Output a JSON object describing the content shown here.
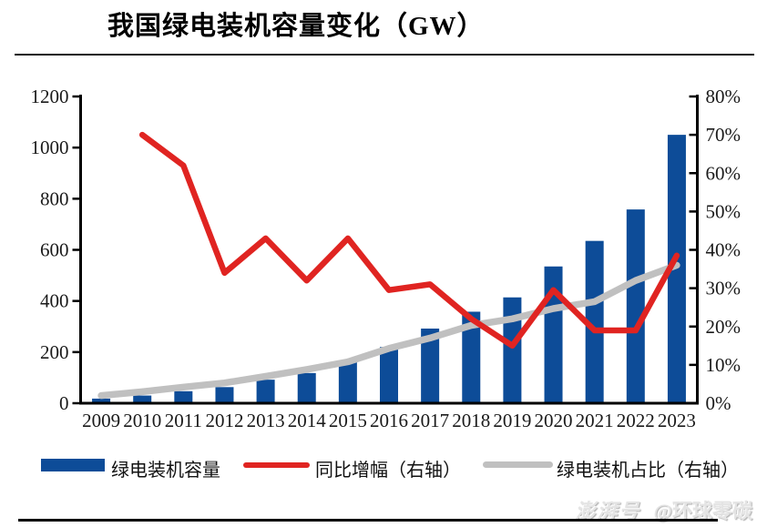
{
  "header": {
    "title": "我国绿电装机容量变化（GW）"
  },
  "chart_data": {
    "type": "combo",
    "title": "我国绿电装机容量变化（GW）",
    "categories": [
      "2009",
      "2010",
      "2011",
      "2012",
      "2013",
      "2014",
      "2015",
      "2016",
      "2017",
      "2018",
      "2019",
      "2020",
      "2021",
      "2022",
      "2023"
    ],
    "series": [
      {
        "name": "绿电装机容量",
        "type": "bar",
        "axis": "left",
        "unit": "GW",
        "color": "#0d4c98",
        "values": [
          18,
          30,
          47,
          63,
          92,
          118,
          163,
          220,
          292,
          358,
          414,
          535,
          635,
          758,
          1050
        ]
      },
      {
        "name": "同比增幅（右轴）",
        "type": "line",
        "axis": "right",
        "unit": "%",
        "color": "#e02421",
        "values": [
          null,
          70,
          62,
          34,
          43,
          32,
          43,
          29.5,
          31,
          22,
          15,
          29.5,
          19,
          19,
          38.5
        ]
      },
      {
        "name": "绿电装机占比（右轴）",
        "type": "line",
        "axis": "right",
        "unit": "%",
        "color": "#c0c0c0",
        "values": [
          2,
          3,
          4.2,
          5.3,
          7,
          8.8,
          10.8,
          14.3,
          17,
          20.3,
          22,
          24.7,
          26.5,
          32,
          36
        ]
      }
    ],
    "left_axis": {
      "min": 0,
      "max": 1200,
      "ticks": [
        "0",
        "200",
        "400",
        "600",
        "800",
        "1000",
        "1200"
      ]
    },
    "right_axis": {
      "min": 0,
      "max": 80,
      "ticks": [
        "0%",
        "10%",
        "20%",
        "30%",
        "40%",
        "50%",
        "60%",
        "70%",
        "80%"
      ]
    },
    "grid": false,
    "legend_position": "bottom"
  },
  "watermark": {
    "brand": "澎湃号",
    "handle": "@环球零碳"
  }
}
